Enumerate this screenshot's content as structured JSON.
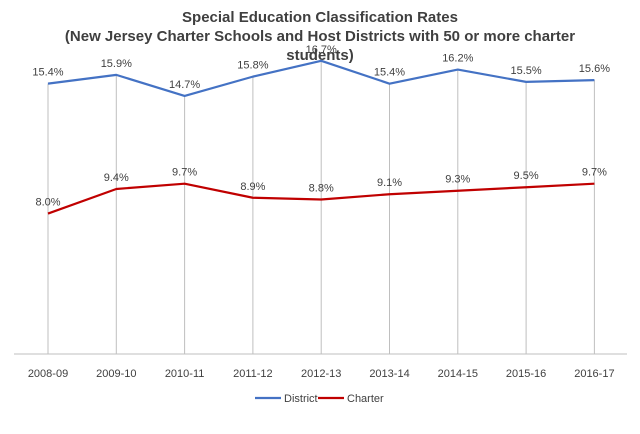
{
  "chart_data": {
    "type": "line",
    "title_lines": [
      "Special Education Classification Rates",
      "(New Jersey Charter Schools and Host Districts with 50 or more charter",
      "students)"
    ],
    "categories": [
      "2008-09",
      "2009-10",
      "2010-11",
      "2011-12",
      "2012-13",
      "2013-14",
      "2014-15",
      "2015-16",
      "2016-17"
    ],
    "series": [
      {
        "name": "District",
        "color": "#4472C4",
        "values": [
          15.4,
          15.9,
          14.7,
          15.8,
          16.7,
          15.4,
          16.2,
          15.5,
          15.6
        ],
        "labels": [
          "15.4%",
          "15.9%",
          "14.7%",
          "15.8%",
          "16.7%",
          "15.4%",
          "16.2%",
          "15.5%",
          "15.6%"
        ]
      },
      {
        "name": "Charter",
        "color": "#C00000",
        "values": [
          8.0,
          9.4,
          9.7,
          8.9,
          8.8,
          9.1,
          9.3,
          9.5,
          9.7
        ],
        "labels": [
          "8.0%",
          "9.4%",
          "9.7%",
          "8.9%",
          "8.8%",
          "9.1%",
          "9.3%",
          "9.5%",
          "9.7%"
        ]
      }
    ],
    "ylim": [
      0,
      18
    ],
    "drop_lines": true,
    "legend_position": "bottom",
    "grid": false
  }
}
